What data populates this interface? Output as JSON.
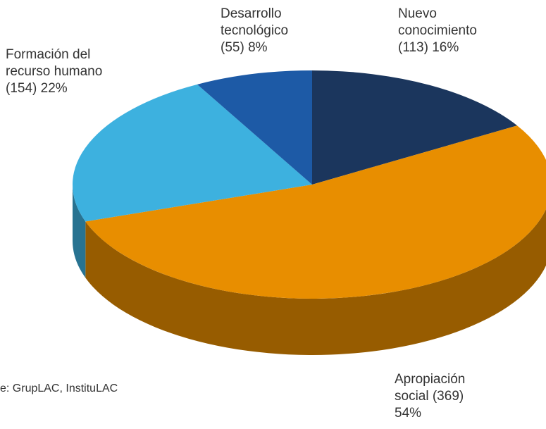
{
  "chart_data": {
    "type": "pie3d",
    "categories": [
      "Nuevo conocimiento",
      "Apropiación social",
      "Formación del recurso humano",
      "Desarrollo tecnológico"
    ],
    "values": [
      113,
      369,
      154,
      55
    ],
    "value_labels": [
      "(113) 16%",
      "(369) 54%",
      "(154)  22%",
      "(55)  8%"
    ],
    "colors": [
      "#1b365d",
      "#e88e00",
      "#3db1df",
      "#1d5aa6"
    ],
    "source": "e: GrupLAC, InstituLAC"
  }
}
